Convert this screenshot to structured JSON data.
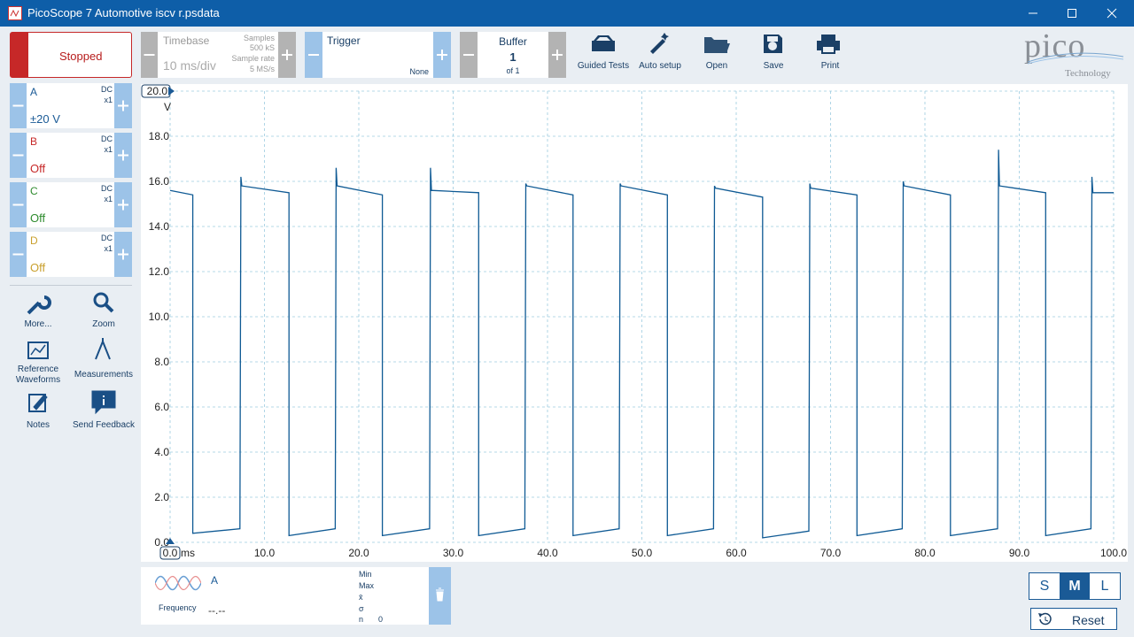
{
  "window": {
    "title": "PicoScope 7 Automotive iscv r.psdata"
  },
  "toolbar": {
    "run_state": "Stopped",
    "timebase": {
      "label": "Timebase",
      "value": "10 ms/div",
      "samples_label": "Samples",
      "samples": "500 kS",
      "rate_label": "Sample rate",
      "rate": "5 MS/s"
    },
    "trigger": {
      "label": "Trigger",
      "mode": "None"
    },
    "buffer": {
      "label": "Buffer",
      "value": "1",
      "of": "of 1"
    },
    "buttons": [
      "Guided Tests",
      "Auto setup",
      "Open",
      "Save",
      "Print"
    ],
    "logo": {
      "name": "pico",
      "tagline": "Technology"
    }
  },
  "channels": [
    {
      "name": "A",
      "coupling": "DC",
      "probe": "x1",
      "range": "±20 V"
    },
    {
      "name": "B",
      "coupling": "DC",
      "probe": "x1",
      "range": "Off"
    },
    {
      "name": "C",
      "coupling": "DC",
      "probe": "x1",
      "range": "Off"
    },
    {
      "name": "D",
      "coupling": "DC",
      "probe": "x1",
      "range": "Off"
    }
  ],
  "tools": [
    "More...",
    "Zoom",
    "Reference Waveforms",
    "Measurements",
    "Notes",
    "Send Feedback"
  ],
  "measurement": {
    "channel": "A",
    "name": "Frequency",
    "value": "--.--",
    "min": "Min",
    "max": "Max",
    "mean": "x̄",
    "sigma": "σ",
    "n_label": "n",
    "n": "0"
  },
  "size_buttons": [
    "S",
    "M",
    "L"
  ],
  "reset": "Reset",
  "chart_data": {
    "type": "line",
    "x_label": "ms",
    "y_label": "V",
    "color": "#0f5a94",
    "grid": true,
    "xlim": [
      0,
      100
    ],
    "ylim": [
      0,
      20
    ],
    "xticks": [
      {
        "value": 0,
        "label": "0.0"
      },
      {
        "value": 10,
        "label": "10.0"
      },
      {
        "value": 20,
        "label": "20.0"
      },
      {
        "value": 30,
        "label": "30.0"
      },
      {
        "value": 40,
        "label": "40.0"
      },
      {
        "value": 50,
        "label": "50.0"
      },
      {
        "value": 60,
        "label": "60.0"
      },
      {
        "value": 70,
        "label": "70.0"
      },
      {
        "value": 80,
        "label": "80.0"
      },
      {
        "value": 90,
        "label": "90.0"
      },
      {
        "value": 100,
        "label": "100.0"
      }
    ],
    "yticks": [
      {
        "value": 0,
        "label": "0.0"
      },
      {
        "value": 2,
        "label": "2.0"
      },
      {
        "value": 4,
        "label": "4.0"
      },
      {
        "value": 6,
        "label": "6.0"
      },
      {
        "value": 8,
        "label": "8.0"
      },
      {
        "value": 10,
        "label": "10.0"
      },
      {
        "value": 12,
        "label": "12.0"
      },
      {
        "value": 14,
        "label": "14.0"
      },
      {
        "value": 16,
        "label": "16.0"
      },
      {
        "value": 18,
        "label": "18.0"
      },
      {
        "value": 20,
        "label": "20.0"
      }
    ],
    "x": [
      0,
      2.4,
      2.4,
      7.4,
      7.5,
      7.6,
      12.6,
      12.6,
      17.5,
      17.6,
      17.7,
      22.5,
      22.5,
      27.5,
      27.6,
      27.7,
      32.7,
      32.7,
      37.6,
      37.7,
      37.8,
      42.7,
      42.7,
      47.6,
      47.7,
      47.8,
      52.7,
      52.7,
      57.6,
      57.7,
      57.8,
      62.8,
      62.8,
      67.7,
      67.8,
      67.9,
      72.8,
      72.8,
      77.6,
      77.7,
      77.8,
      82.7,
      82.7,
      87.7,
      87.8,
      87.9,
      92.8,
      92.8,
      97.6,
      97.7,
      97.8,
      100
    ],
    "values": [
      15.6,
      15.4,
      0.4,
      0.6,
      16.2,
      15.8,
      15.5,
      0.3,
      0.6,
      16.6,
      15.8,
      15.4,
      0.3,
      0.6,
      16.6,
      15.6,
      15.5,
      0.3,
      0.6,
      15.9,
      15.8,
      15.4,
      0.3,
      0.6,
      15.9,
      15.8,
      15.4,
      0.3,
      0.6,
      15.8,
      15.7,
      15.3,
      0.2,
      0.5,
      15.9,
      15.7,
      15.4,
      0.3,
      0.6,
      16.0,
      15.8,
      15.4,
      0.3,
      0.6,
      17.4,
      15.8,
      15.5,
      0.3,
      0.6,
      16.2,
      15.5,
      15.5
    ]
  }
}
